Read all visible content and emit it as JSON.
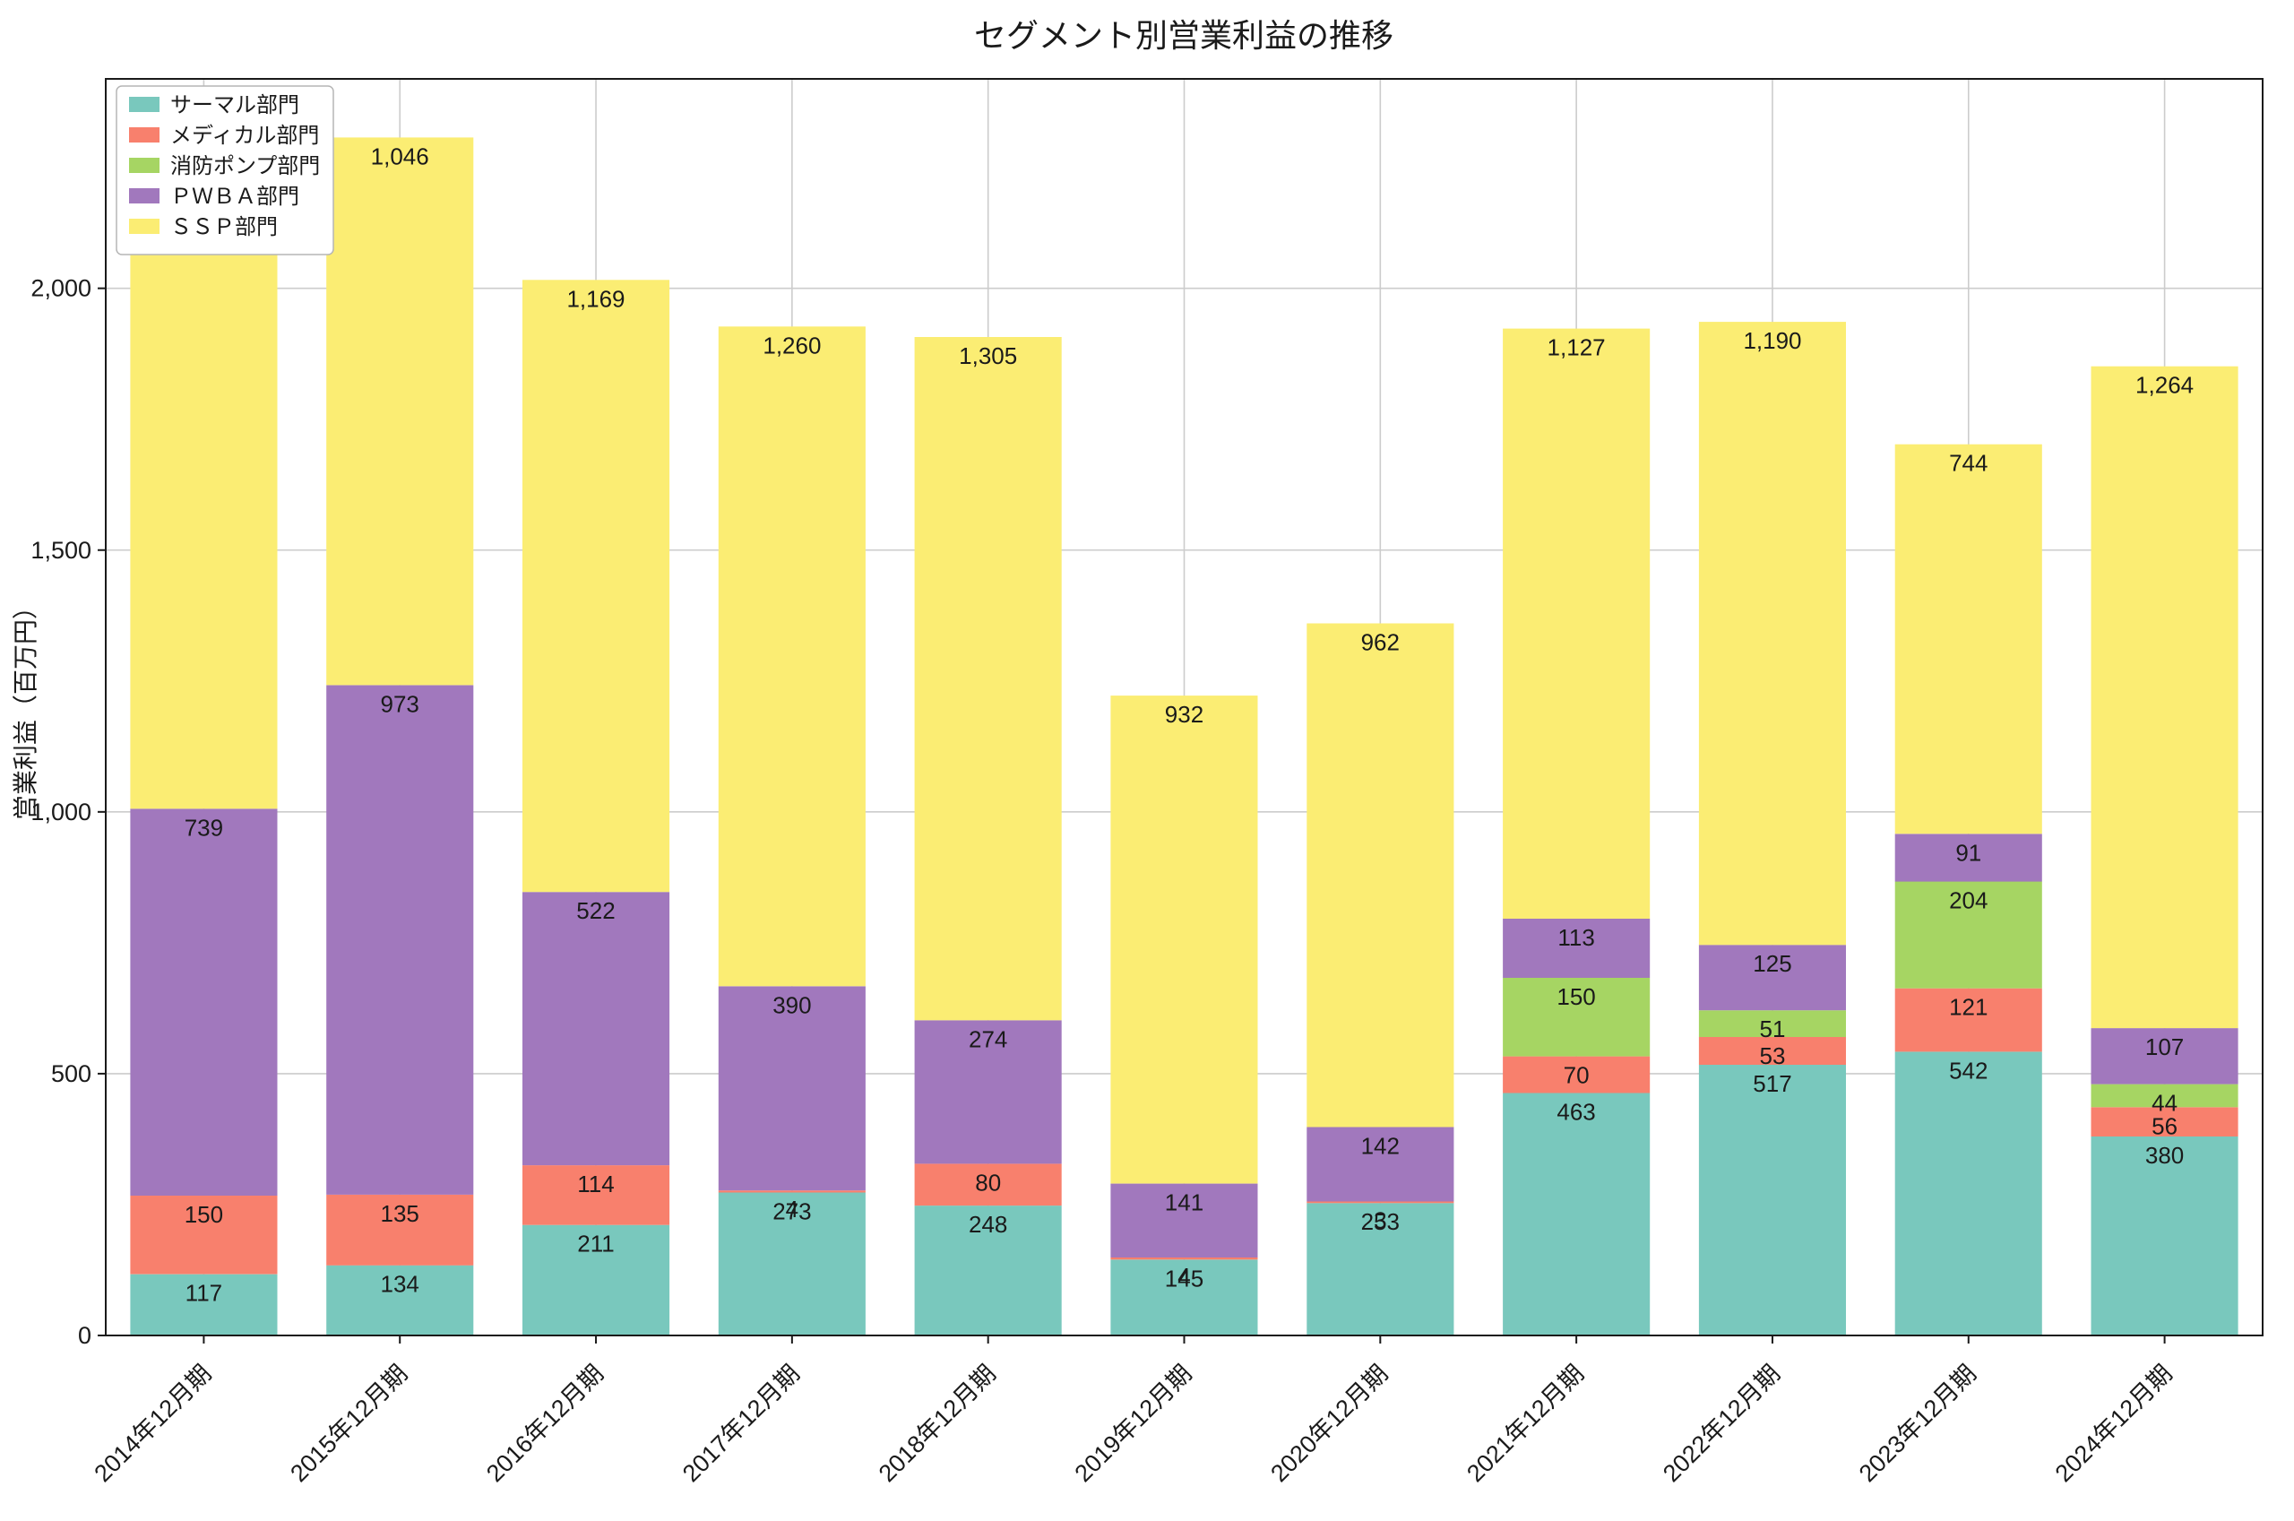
{
  "chart_data": {
    "type": "bar",
    "stacked": true,
    "title": "セグメント別営業利益の推移",
    "ylabel": "営業利益（百万円）",
    "xlabel": "",
    "categories": [
      "2014年12月期",
      "2015年12月期",
      "2016年12月期",
      "2017年12月期",
      "2018年12月期",
      "2019年12月期",
      "2020年12月期",
      "2021年12月期",
      "2022年12月期",
      "2023年12月期",
      "2024年12月期"
    ],
    "series": [
      {
        "name": "サーマル部門",
        "color": "#79c8bd",
        "values": [
          117,
          134,
          211,
          273,
          248,
          145,
          253,
          463,
          517,
          542,
          380
        ]
      },
      {
        "name": "メディカル部門",
        "color": "#f8806d",
        "values": [
          150,
          135,
          114,
          4,
          80,
          4,
          3,
          70,
          53,
          121,
          56
        ]
      },
      {
        "name": "消防ポンプ部門",
        "color": "#a6d563",
        "values": [
          0,
          0,
          0,
          0,
          0,
          0,
          0,
          150,
          51,
          204,
          44
        ]
      },
      {
        "name": "ＰＷＢＡ部門",
        "color": "#a178bd",
        "values": [
          739,
          973,
          522,
          390,
          274,
          141,
          142,
          113,
          125,
          91,
          107
        ]
      },
      {
        "name": "ＳＳＰ部門",
        "color": "#fbed73",
        "values": [
          1210,
          1046,
          1169,
          1260,
          1305,
          932,
          962,
          1127,
          1190,
          744,
          1264
        ]
      }
    ],
    "ylim": [
      0,
      2400
    ],
    "yticks": [
      0,
      500,
      1000,
      1500,
      2000
    ],
    "grid": true,
    "legend_position": "upper left",
    "colors": {
      "grid": "#cccccc",
      "spine": "#1a1a1a",
      "text": "#1a1a1a",
      "legend_border": "#b5b5b5",
      "legend_background": "#ffffff"
    }
  }
}
